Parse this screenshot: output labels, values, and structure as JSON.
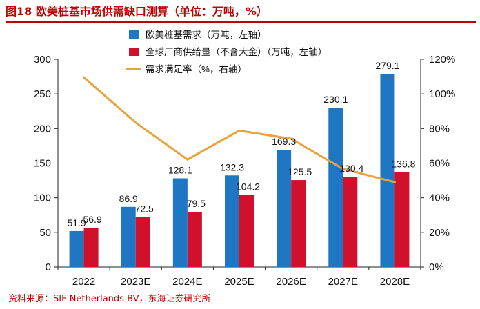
{
  "title": "图18  欧美桩基市场供需缺口测算（单位：万吨，%）",
  "source": "资料来源：SIF Netherlands BV，东海证券研究所",
  "colors": {
    "demand": "#1f77c4",
    "supply": "#d0112b",
    "ratio": "#e8a33a",
    "title": "#c00000"
  },
  "chart_data": {
    "type": "bar",
    "categories": [
      "2022",
      "2023E",
      "2024E",
      "2025E",
      "2026E",
      "2027E",
      "2028E"
    ],
    "series": [
      {
        "name": "欧美桩基需求（万吨，左轴）",
        "type": "bar",
        "axis": "left",
        "values": [
          51.9,
          86.9,
          128.1,
          132.3,
          169.3,
          230.1,
          279.1
        ],
        "labels": [
          "51.9",
          "86.9",
          "128.1",
          "132.3",
          "169.3",
          "230.1",
          "279.1"
        ]
      },
      {
        "name": "全球厂商供给量（不含大金）（万吨，左轴）",
        "type": "bar",
        "axis": "left",
        "values": [
          56.9,
          72.5,
          79.5,
          104.2,
          125.5,
          130.4,
          136.8
        ],
        "labels": [
          "56.9",
          "72.5",
          "79.5",
          "104.2",
          "125.5",
          "130.4",
          "136.8"
        ]
      },
      {
        "name": "需求满足率（%，右轴）",
        "type": "line",
        "axis": "right",
        "values": [
          109.6,
          83.4,
          62.1,
          78.8,
          74.1,
          56.7,
          49.0
        ]
      }
    ],
    "y_left": {
      "min": 0,
      "max": 300,
      "ticks": [
        0,
        50,
        100,
        150,
        200,
        250,
        300
      ],
      "tick_labels": [
        "0",
        "50",
        "100",
        "150",
        "200",
        "250",
        "300"
      ]
    },
    "y_right": {
      "min": 0,
      "max": 120,
      "ticks": [
        0,
        20,
        40,
        60,
        80,
        100,
        120
      ],
      "tick_labels": [
        "0%",
        "20%",
        "40%",
        "60%",
        "80%",
        "100%",
        "120%"
      ]
    },
    "grid": false,
    "legend_position": "top-left"
  }
}
